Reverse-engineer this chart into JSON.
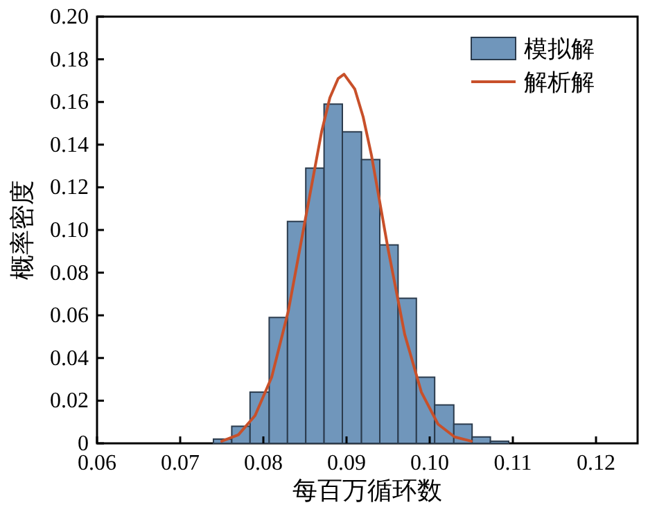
{
  "chart_data": {
    "type": "histogram",
    "xlabel": "每百万循环数",
    "ylabel": "概率密度",
    "xlim": [
      0.06,
      0.125
    ],
    "xticks": [
      {
        "value": 0.06,
        "label": "0.06"
      },
      {
        "value": 0.07,
        "label": "0.07"
      },
      {
        "value": 0.08,
        "label": "0.08"
      },
      {
        "value": 0.09,
        "label": "0.09"
      },
      {
        "value": 0.1,
        "label": "0.10"
      },
      {
        "value": 0.11,
        "label": "0.11"
      },
      {
        "value": 0.12,
        "label": "0.12"
      }
    ],
    "ylim": [
      0,
      0.2
    ],
    "yticks": [
      0,
      {
        "value": 0.02,
        "label": "0.02"
      },
      {
        "value": 0.04,
        "label": "0.04"
      },
      {
        "value": 0.06,
        "label": "0.06"
      },
      {
        "value": 0.08,
        "label": "0.08"
      },
      {
        "value": 0.1,
        "label": "0.10"
      },
      {
        "value": 0.12,
        "label": "0.12"
      },
      {
        "value": 0.14,
        "label": "0.14"
      },
      {
        "value": 0.16,
        "label": "0.16"
      },
      {
        "value": 0.18,
        "label": "0.18"
      },
      {
        "value": 0.2,
        "label": "0.20"
      }
    ],
    "bins": [
      0.074,
      0.0762,
      0.0784,
      0.0807,
      0.0829,
      0.0851,
      0.0873,
      0.0895,
      0.0918,
      0.094,
      0.0962,
      0.0984,
      0.1006,
      0.1029,
      0.1051,
      0.1073,
      0.1095
    ],
    "legend": "top right",
    "grid": false,
    "series": [
      {
        "name": "模拟解",
        "type": "histogram",
        "color": "#7096bb",
        "values": [
          0.002,
          0.008,
          0.024,
          0.059,
          0.104,
          0.129,
          0.159,
          0.146,
          0.133,
          0.093,
          0.068,
          0.031,
          0.018,
          0.009,
          0.003,
          0.001
        ]
      },
      {
        "name": "解析解",
        "type": "line",
        "color": "#c8502a",
        "x": [
          0.075,
          0.077,
          0.079,
          0.081,
          0.083,
          0.085,
          0.087,
          0.088,
          0.089,
          0.0897,
          0.091,
          0.092,
          0.093,
          0.095,
          0.097,
          0.099,
          0.101,
          0.103,
          0.105
        ],
        "values": [
          0.001,
          0.004,
          0.013,
          0.031,
          0.062,
          0.104,
          0.146,
          0.162,
          0.171,
          0.173,
          0.166,
          0.153,
          0.135,
          0.091,
          0.051,
          0.024,
          0.009,
          0.003,
          0.001
        ]
      }
    ]
  }
}
